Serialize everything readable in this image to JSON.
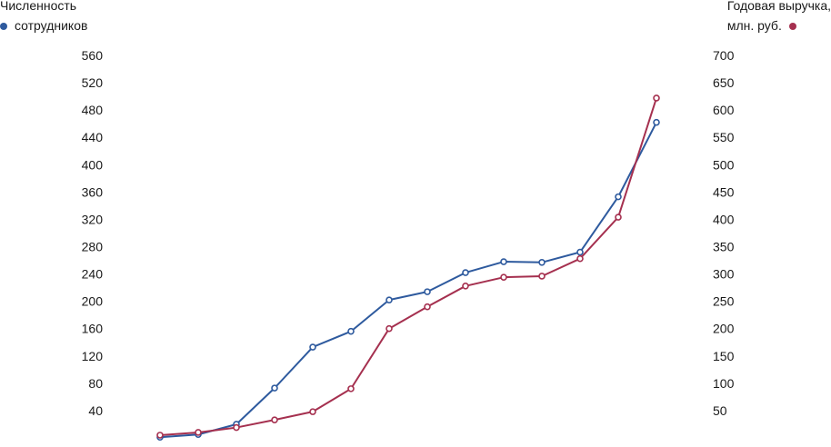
{
  "chart_data": {
    "type": "line",
    "left_axis": {
      "label_lines": [
        "Численность",
        "сотрудников"
      ],
      "ticks": [
        40,
        80,
        120,
        160,
        200,
        240,
        280,
        320,
        360,
        400,
        440,
        480,
        520,
        560
      ],
      "range": [
        0,
        560
      ]
    },
    "right_axis": {
      "label_lines": [
        "Годовая выручка,",
        "млн. руб."
      ],
      "ticks": [
        50,
        100,
        150,
        200,
        250,
        300,
        350,
        400,
        450,
        500,
        550,
        600,
        650,
        700
      ],
      "range": [
        0,
        700
      ]
    },
    "series": [
      {
        "axis": "left",
        "color": "#2e5a9e",
        "values": [
          1,
          5,
          20,
          73,
          133,
          156,
          202,
          214,
          242,
          258,
          257,
          272,
          353,
          462
        ]
      },
      {
        "axis": "right",
        "color": "#a5304f",
        "values": [
          5,
          10,
          19,
          33,
          48,
          90,
          200,
          240,
          278,
          294,
          296,
          328,
          404,
          622
        ]
      }
    ],
    "grid": false,
    "legend": "top-left / top-right"
  }
}
